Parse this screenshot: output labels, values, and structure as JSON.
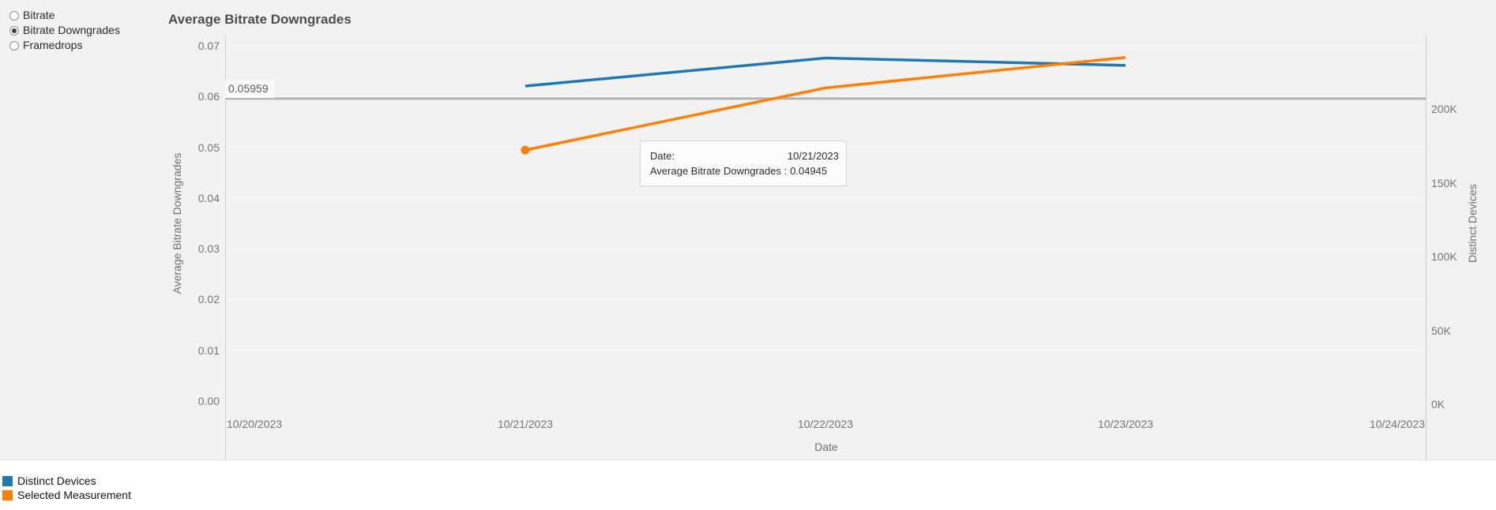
{
  "controls": {
    "radios": [
      {
        "label": "Bitrate",
        "selected": false
      },
      {
        "label": "Bitrate Downgrades",
        "selected": true
      },
      {
        "label": "Framedrops",
        "selected": false
      }
    ]
  },
  "tooltip": {
    "rows": [
      {
        "label": "Date:",
        "value": "10/21/2023"
      },
      {
        "label": "Average Bitrate Downgrades :",
        "value": "0.04945"
      }
    ]
  },
  "legend": {
    "items": [
      {
        "label": "Distinct Devices",
        "color": "#1f77b4"
      },
      {
        "label": "Selected Measurement",
        "color": "#ff8000"
      }
    ]
  },
  "chart_data": {
    "type": "line",
    "title": "Average Bitrate Downgrades",
    "xlabel": "Date",
    "x_categories": [
      "10/20/2023",
      "10/21/2023",
      "10/22/2023",
      "10/23/2023",
      "10/24/2023"
    ],
    "left_axis": {
      "label": "Average Bitrate Downgrades",
      "range": [
        0,
        0.07
      ],
      "ticks": [
        {
          "label": "0.07",
          "value": 0.07
        },
        {
          "label": "0.06",
          "value": 0.06
        },
        {
          "label": "0.05",
          "value": 0.05
        },
        {
          "label": "0.04",
          "value": 0.04
        },
        {
          "label": "0.03",
          "value": 0.03
        },
        {
          "label": "0.02",
          "value": 0.02
        },
        {
          "label": "0.01",
          "value": 0.01
        },
        {
          "label": "0.00",
          "value": 0.0
        }
      ]
    },
    "right_axis": {
      "label": "Distinct Devices",
      "range": [
        0,
        250000
      ],
      "ticks": [
        {
          "label": "200K",
          "value": 200000
        },
        {
          "label": "150K",
          "value": 150000
        },
        {
          "label": "100K",
          "value": 100000
        },
        {
          "label": "50K",
          "value": 50000
        },
        {
          "label": "0K",
          "value": 0
        }
      ]
    },
    "reference_line": {
      "label": "0.05959",
      "value": 0.05959,
      "axis": "left",
      "color": "#b3b3b3"
    },
    "series": [
      {
        "name": "Distinct Devices",
        "axis": "right",
        "color": "#1f77b4",
        "marker_first": false,
        "points": [
          {
            "x": "10/21/2023",
            "y": 215500
          },
          {
            "x": "10/22/2023",
            "y": 234500
          },
          {
            "x": "10/23/2023",
            "y": 229500
          }
        ]
      },
      {
        "name": "Selected Measurement",
        "axis": "left",
        "color": "#ff8000",
        "marker_first": true,
        "points": [
          {
            "x": "10/21/2023",
            "y": 0.04945
          },
          {
            "x": "10/22/2023",
            "y": 0.0617
          },
          {
            "x": "10/23/2023",
            "y": 0.0677
          }
        ]
      }
    ],
    "legend_position": "bottom-left",
    "grid": "subtle-horizontal"
  }
}
